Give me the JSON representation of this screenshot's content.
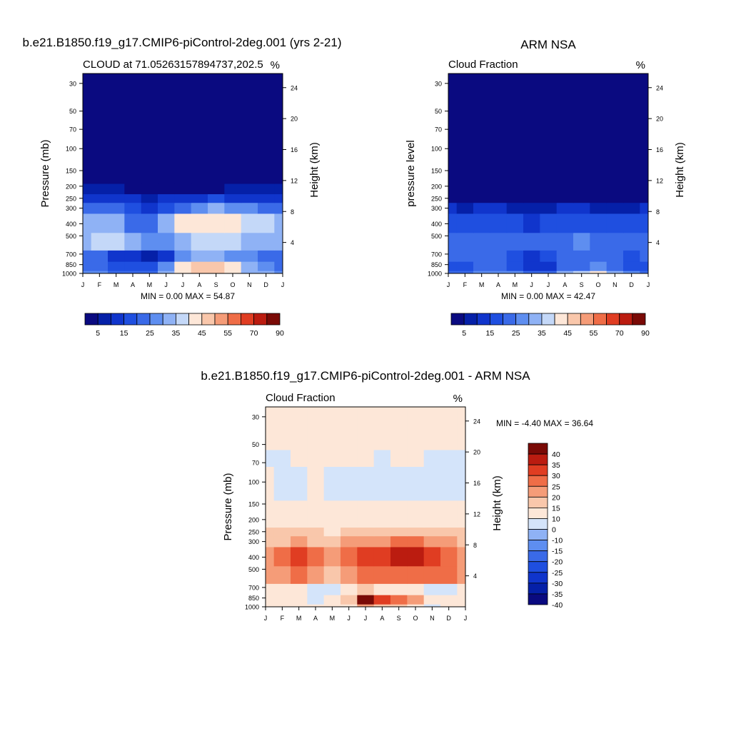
{
  "figure": {
    "panel1_title": "b.e21.B1850.f19_g17.CMIP6-piControl-2deg.001 (yrs 2-21)",
    "panel2_title": "ARM NSA",
    "panel3_title": "b.e21.B1850.f19_g17.CMIP6-piControl-2deg.001 - ARM NSA"
  },
  "chart_data": [
    {
      "type": "heatmap",
      "title": "b.e21.B1850.f19_g17.CMIP6-piControl-2deg.001 (yrs 2-21)",
      "left_string": "CLOUD at 71.05263157894737,202.5",
      "right_string": "%",
      "xlabel": "",
      "ylabel": "Pressure (mb)",
      "ylabel_right": "Height (km)",
      "x_ticks": [
        "J",
        "F",
        "M",
        "A",
        "M",
        "J",
        "J",
        "A",
        "S",
        "O",
        "N",
        "D",
        "J"
      ],
      "y_ticks": [
        30,
        50,
        70,
        100,
        150,
        200,
        250,
        300,
        400,
        500,
        700,
        850,
        1000
      ],
      "y_ticks_right": [
        24,
        20,
        16,
        12,
        8,
        4
      ],
      "ylim": [
        1000,
        25
      ],
      "y_scale": "log",
      "stats": "MIN =   0.00 MAX =  54.87",
      "colorbar": {
        "orientation": "horizontal",
        "labels": [
          "5",
          "15",
          "25",
          "35",
          "45",
          "55",
          "70",
          "90"
        ]
      },
      "fields": [
        {
          "level_range": [
            1000,
            950
          ],
          "values": [
            28,
            25,
            24,
            23,
            24,
            30,
            42,
            46,
            46,
            44,
            32,
            30,
            28
          ]
        },
        {
          "level_range": [
            950,
            800
          ],
          "values": [
            22,
            20,
            18,
            16,
            18,
            26,
            40,
            46,
            47,
            44,
            33,
            28,
            22
          ]
        },
        {
          "level_range": [
            800,
            650
          ],
          "values": [
            24,
            20,
            14,
            10,
            8,
            14,
            26,
            30,
            30,
            28,
            26,
            24,
            24
          ]
        },
        {
          "level_range": [
            650,
            470
          ],
          "values": [
            34,
            36,
            36,
            32,
            26,
            28,
            32,
            36,
            38,
            36,
            34,
            34,
            34
          ]
        },
        {
          "level_range": [
            470,
            330
          ],
          "values": [
            34,
            34,
            30,
            24,
            22,
            30,
            40,
            42,
            44,
            42,
            38,
            36,
            34
          ]
        },
        {
          "level_range": [
            330,
            270
          ],
          "values": [
            24,
            22,
            20,
            16,
            14,
            18,
            24,
            28,
            30,
            28,
            26,
            24,
            24
          ]
        },
        {
          "level_range": [
            270,
            230
          ],
          "values": [
            14,
            12,
            11,
            10,
            9,
            10,
            12,
            14,
            15,
            14,
            13,
            14,
            14
          ]
        },
        {
          "level_range": [
            230,
            190
          ],
          "values": [
            6,
            6,
            5,
            4,
            3,
            3,
            4,
            4,
            4,
            5,
            5,
            6,
            6
          ]
        },
        {
          "level_range": [
            190,
            25
          ],
          "values": [
            1,
            1,
            1,
            1,
            1,
            1,
            1,
            1,
            1,
            1,
            1,
            1,
            1
          ]
        }
      ]
    },
    {
      "type": "heatmap",
      "title": "ARM NSA",
      "left_string": "Cloud Fraction",
      "right_string": "%",
      "xlabel": "",
      "ylabel": "pressure level",
      "ylabel_right": "Height (km)",
      "x_ticks": [
        "J",
        "F",
        "M",
        "A",
        "M",
        "J",
        "J",
        "A",
        "S",
        "O",
        "N",
        "D",
        "J"
      ],
      "y_ticks": [
        30,
        50,
        70,
        100,
        150,
        200,
        250,
        300,
        400,
        500,
        700,
        850,
        1000
      ],
      "y_ticks_right": [
        24,
        20,
        16,
        12,
        8,
        4
      ],
      "ylim": [
        1000,
        25
      ],
      "y_scale": "log",
      "stats": "MIN =   0.00 MAX =  42.47",
      "colorbar": {
        "orientation": "horizontal",
        "labels": [
          "5",
          "15",
          "25",
          "35",
          "45",
          "55",
          "70",
          "90"
        ]
      },
      "fields": [
        {
          "level_range": [
            1000,
            950
          ],
          "values": [
            22,
            24,
            26,
            28,
            26,
            22,
            24,
            32,
            36,
            42,
            34,
            26,
            22
          ]
        },
        {
          "level_range": [
            950,
            800
          ],
          "values": [
            18,
            18,
            20,
            20,
            18,
            12,
            14,
            20,
            24,
            28,
            22,
            18,
            18
          ]
        },
        {
          "level_range": [
            800,
            650
          ],
          "values": [
            20,
            20,
            22,
            22,
            18,
            14,
            16,
            20,
            22,
            22,
            20,
            18,
            20
          ]
        },
        {
          "level_range": [
            650,
            470
          ],
          "values": [
            22,
            20,
            24,
            24,
            22,
            20,
            22,
            24,
            26,
            24,
            22,
            20,
            22
          ]
        },
        {
          "level_range": [
            470,
            330
          ],
          "values": [
            16,
            16,
            18,
            18,
            16,
            14,
            16,
            18,
            18,
            16,
            16,
            15,
            16
          ]
        },
        {
          "level_range": [
            330,
            270
          ],
          "values": [
            10,
            9,
            10,
            10,
            9,
            8,
            9,
            11,
            11,
            9,
            9,
            9,
            10
          ]
        },
        {
          "level_range": [
            270,
            25
          ],
          "values": [
            1,
            1,
            1,
            1,
            1,
            1,
            1,
            1,
            1,
            1,
            1,
            1,
            1
          ]
        }
      ]
    },
    {
      "type": "heatmap",
      "title": "b.e21.B1850.f19_g17.CMIP6-piControl-2deg.001 - ARM NSA",
      "left_string": "Cloud Fraction",
      "right_string": "%",
      "xlabel": "",
      "ylabel": "Pressure (mb)",
      "ylabel_right": "Height (km)",
      "x_ticks": [
        "J",
        "F",
        "M",
        "A",
        "M",
        "J",
        "J",
        "A",
        "S",
        "O",
        "N",
        "D",
        "J"
      ],
      "y_ticks": [
        30,
        50,
        70,
        100,
        150,
        200,
        250,
        300,
        400,
        500,
        700,
        850,
        1000
      ],
      "y_ticks_right": [
        24,
        20,
        16,
        12,
        8,
        4
      ],
      "ylim": [
        1000,
        25
      ],
      "y_scale": "log",
      "stats": "MIN =  -4.40 MAX =  36.64",
      "colorbar": {
        "orientation": "vertical",
        "labels": [
          "40",
          "35",
          "30",
          "25",
          "20",
          "15",
          "10",
          "0",
          "-10",
          "-15",
          "-20",
          "-25",
          "-30",
          "-35",
          "-40"
        ]
      },
      "fields": [
        {
          "level_range": [
            1000,
            950
          ],
          "values": [
            6,
            6,
            4,
            2,
            2,
            8,
            18,
            14,
            10,
            2,
            -2,
            4,
            6
          ]
        },
        {
          "level_range": [
            950,
            800
          ],
          "values": [
            4,
            2,
            2,
            -2,
            0,
            14,
            36,
            28,
            22,
            16,
            8,
            4,
            4
          ]
        },
        {
          "level_range": [
            800,
            650
          ],
          "values": [
            4,
            2,
            2,
            -2,
            -2,
            2,
            10,
            8,
            6,
            4,
            -2,
            -2,
            4
          ]
        },
        {
          "level_range": [
            650,
            470
          ],
          "values": [
            18,
            18,
            22,
            18,
            14,
            18,
            20,
            22,
            24,
            22,
            22,
            20,
            18
          ]
        },
        {
          "level_range": [
            470,
            330
          ],
          "values": [
            18,
            20,
            26,
            22,
            16,
            24,
            28,
            26,
            30,
            30,
            26,
            22,
            18
          ]
        },
        {
          "level_range": [
            330,
            270
          ],
          "values": [
            14,
            14,
            16,
            14,
            12,
            16,
            18,
            18,
            20,
            20,
            18,
            16,
            14
          ]
        },
        {
          "level_range": [
            270,
            230
          ],
          "values": [
            10,
            10,
            12,
            10,
            9,
            10,
            12,
            12,
            12,
            12,
            11,
            10,
            10
          ]
        },
        {
          "level_range": [
            230,
            140
          ],
          "values": [
            2,
            2,
            2,
            2,
            2,
            1,
            1,
            1,
            1,
            2,
            2,
            2,
            2
          ]
        },
        {
          "level_range": [
            140,
            75
          ],
          "values": [
            2,
            -1,
            -1,
            2,
            -1,
            -1,
            -1,
            -1,
            -1,
            -1,
            -1,
            -1,
            -1
          ]
        },
        {
          "level_range": [
            75,
            55
          ],
          "values": [
            -1,
            -1,
            2,
            2,
            2,
            2,
            2,
            -1,
            2,
            2,
            -1,
            -1,
            -1
          ]
        },
        {
          "level_range": [
            55,
            25
          ],
          "values": [
            2,
            2,
            2,
            2,
            2,
            2,
            2,
            2,
            2,
            2,
            2,
            2,
            2
          ]
        }
      ]
    }
  ],
  "colors": {
    "seq": [
      "#0a0a80",
      "#0520a8",
      "#1035cc",
      "#1f4fe0",
      "#3a6ae8",
      "#5e8ef0",
      "#8fb2f5",
      "#c4d8f8",
      "#fde7d8",
      "#f9c7ab",
      "#f59c78",
      "#ef6d47",
      "#e03d22",
      "#bb1c10",
      "#7a0a06"
    ],
    "div": [
      "#0a0a80",
      "#0520a8",
      "#1035cc",
      "#1f4fe0",
      "#3a6ae8",
      "#5e8ef0",
      "#8fb2f5",
      "#d4e4fa",
      "#fde7d8",
      "#f9c7ab",
      "#f59c78",
      "#ef6d47",
      "#e03d22",
      "#bb1c10",
      "#7a0a06"
    ]
  }
}
